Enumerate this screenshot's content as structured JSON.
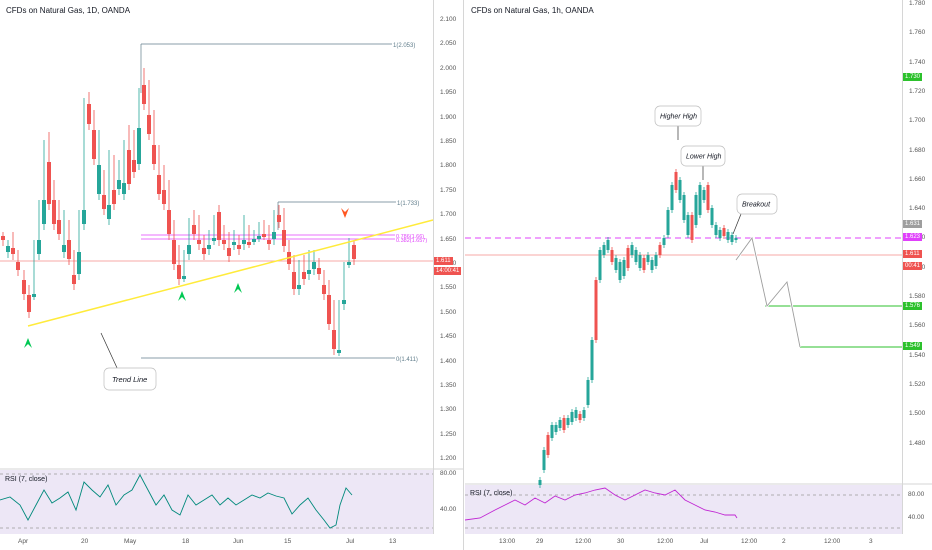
{
  "left_chart": {
    "title": "CFDs on Natural Gas, 1D, OANDA",
    "price_ticks": [
      "2.100",
      "2.050",
      "2.000",
      "1.950",
      "1.900",
      "1.850",
      "1.800",
      "1.750",
      "1.700",
      "1.650",
      "1.600",
      "1.550",
      "1.500",
      "1.450",
      "1.400",
      "1.350",
      "1.300",
      "1.250",
      "1.200"
    ],
    "time_ticks": [
      "Apr",
      "20",
      "May",
      "18",
      "Jun",
      "15",
      "Jul",
      "13"
    ],
    "current_price_tag": "1.611",
    "countdown_tag": "14:00:41",
    "fib_labels": [
      "1(2.053)",
      "1(1.733)",
      "0.786(1.66)",
      "0.382(1.657)",
      "0(1.411)"
    ],
    "annotation_trendline": "Trend Line",
    "rsi_label": "RSI (7, close)",
    "rsi_ticks": [
      "80.00",
      "40.00"
    ]
  },
  "right_chart": {
    "title": "CFDs on Natural Gas, 1h, OANDA",
    "price_ticks": [
      "1.780",
      "1.760",
      "1.740",
      "1.720",
      "1.700",
      "1.680",
      "1.660",
      "1.640",
      "1.620",
      "1.600",
      "1.580",
      "1.560",
      "1.540",
      "1.520",
      "1.500",
      "1.480"
    ],
    "time_ticks": [
      "13:00",
      "29",
      "12:00",
      "30",
      "12:00",
      "Jul",
      "12:00",
      "2",
      "12:00",
      "3"
    ],
    "tags": {
      "top": "1.730",
      "p1631": "1.631",
      "p1623": "1.623",
      "p1611": "1.611",
      "countdown": "00:41",
      "p1576": "1.576",
      "p1549": "1.549"
    },
    "annotation_higher_high": "Higher High",
    "annotation_lower_high": "Lower High",
    "annotation_breakout": "Breakout",
    "rsi_label": "RSI (7, close)",
    "rsi_ticks": [
      "80.00",
      "40.00"
    ]
  },
  "colors": {
    "bull": "#26a69a",
    "bear": "#ef5350",
    "trendline": "#ffeb3b",
    "magenta": "#e040fb",
    "green_target": "#2cc12c",
    "rsi_bg": "#ede7f6"
  }
}
